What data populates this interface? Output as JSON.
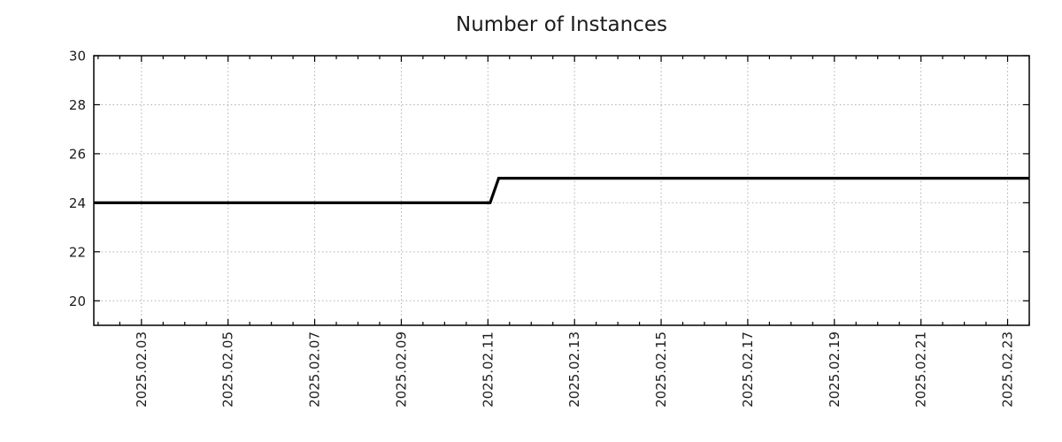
{
  "window": {
    "background": "#ffffff"
  },
  "chart_data": {
    "type": "line",
    "title": "Number of Instances",
    "xlabel": "",
    "ylabel": "",
    "legend": {
      "show": false
    },
    "grid": {
      "show": true,
      "line_style": "dotted",
      "color": "#b0b0b0"
    },
    "axis_color": "#000000",
    "text_color": "#1c1c1c",
    "x_axis": {
      "kind": "date",
      "range_days": [
        1.9,
        23.5
      ],
      "tick_label_rotation_deg": -90,
      "minor_tick_step_days": 0.5,
      "major_ticks": [
        {
          "day": 3,
          "label": "2025.02.03"
        },
        {
          "day": 5,
          "label": "2025.02.05"
        },
        {
          "day": 7,
          "label": "2025.02.07"
        },
        {
          "day": 9,
          "label": "2025.02.09"
        },
        {
          "day": 11,
          "label": "2025.02.11"
        },
        {
          "day": 13,
          "label": "2025.02.13"
        },
        {
          "day": 15,
          "label": "2025.02.15"
        },
        {
          "day": 17,
          "label": "2025.02.17"
        },
        {
          "day": 19,
          "label": "2025.02.19"
        },
        {
          "day": 21,
          "label": "2025.02.21"
        },
        {
          "day": 23,
          "label": "2025.02.23"
        }
      ]
    },
    "y_axis": {
      "range": [
        19,
        30
      ],
      "major_ticks": [
        {
          "value": 20,
          "label": "20"
        },
        {
          "value": 22,
          "label": "22"
        },
        {
          "value": 24,
          "label": "24"
        },
        {
          "value": 26,
          "label": "26"
        },
        {
          "value": 28,
          "label": "28"
        },
        {
          "value": 30,
          "label": "30"
        }
      ]
    },
    "series": [
      {
        "name": "Number of Instances",
        "color": "#000000",
        "line_width": 3.2,
        "points": [
          {
            "day": 1.9,
            "value": 24
          },
          {
            "day": 11.05,
            "value": 24
          },
          {
            "day": 11.25,
            "value": 25
          },
          {
            "day": 23.5,
            "value": 25
          }
        ]
      }
    ]
  }
}
